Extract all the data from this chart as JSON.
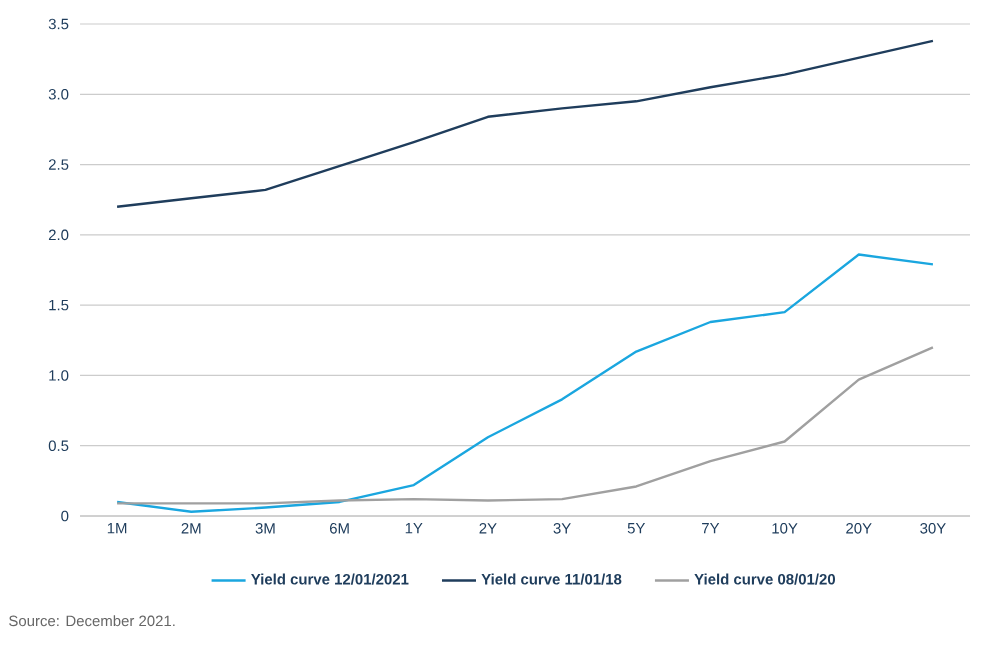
{
  "chart_data": {
    "type": "line",
    "categories": [
      "1M",
      "2M",
      "3M",
      "6M",
      "1Y",
      "2Y",
      "3Y",
      "5Y",
      "7Y",
      "10Y",
      "20Y",
      "30Y"
    ],
    "series": [
      {
        "name": "Yield curve 12/01/2021",
        "color": "#1aa6df",
        "values": [
          0.1,
          0.03,
          0.06,
          0.1,
          0.22,
          0.56,
          0.83,
          1.17,
          1.38,
          1.45,
          1.86,
          1.79
        ]
      },
      {
        "name": "Yield curve 11/01/18",
        "color": "#1f3d5c",
        "values": [
          2.2,
          2.26,
          2.32,
          2.49,
          2.66,
          2.84,
          2.9,
          2.95,
          3.05,
          3.14,
          3.26,
          3.38
        ]
      },
      {
        "name": "Yield curve 08/01/20",
        "color": "#a0a0a0",
        "values": [
          0.09,
          0.09,
          0.09,
          0.11,
          0.12,
          0.11,
          0.12,
          0.21,
          0.39,
          0.53,
          0.97,
          1.2
        ]
      }
    ],
    "ylim": [
      0,
      3.5
    ],
    "yticks": [
      {
        "value": 0,
        "label": "0"
      },
      {
        "value": 0.5,
        "label": "0.5"
      },
      {
        "value": 1,
        "label": "1.0"
      },
      {
        "value": 1.5,
        "label": "1.5"
      },
      {
        "value": 2,
        "label": "2.0"
      },
      {
        "value": 2.5,
        "label": "2.5"
      },
      {
        "value": 3,
        "label": "3.0"
      },
      {
        "value": 3.5,
        "label": "3.5"
      }
    ],
    "grid": "y",
    "legend": "bottom",
    "marker": "none",
    "line_style": "solid",
    "annotations": [
      "Source: December 2021."
    ]
  }
}
